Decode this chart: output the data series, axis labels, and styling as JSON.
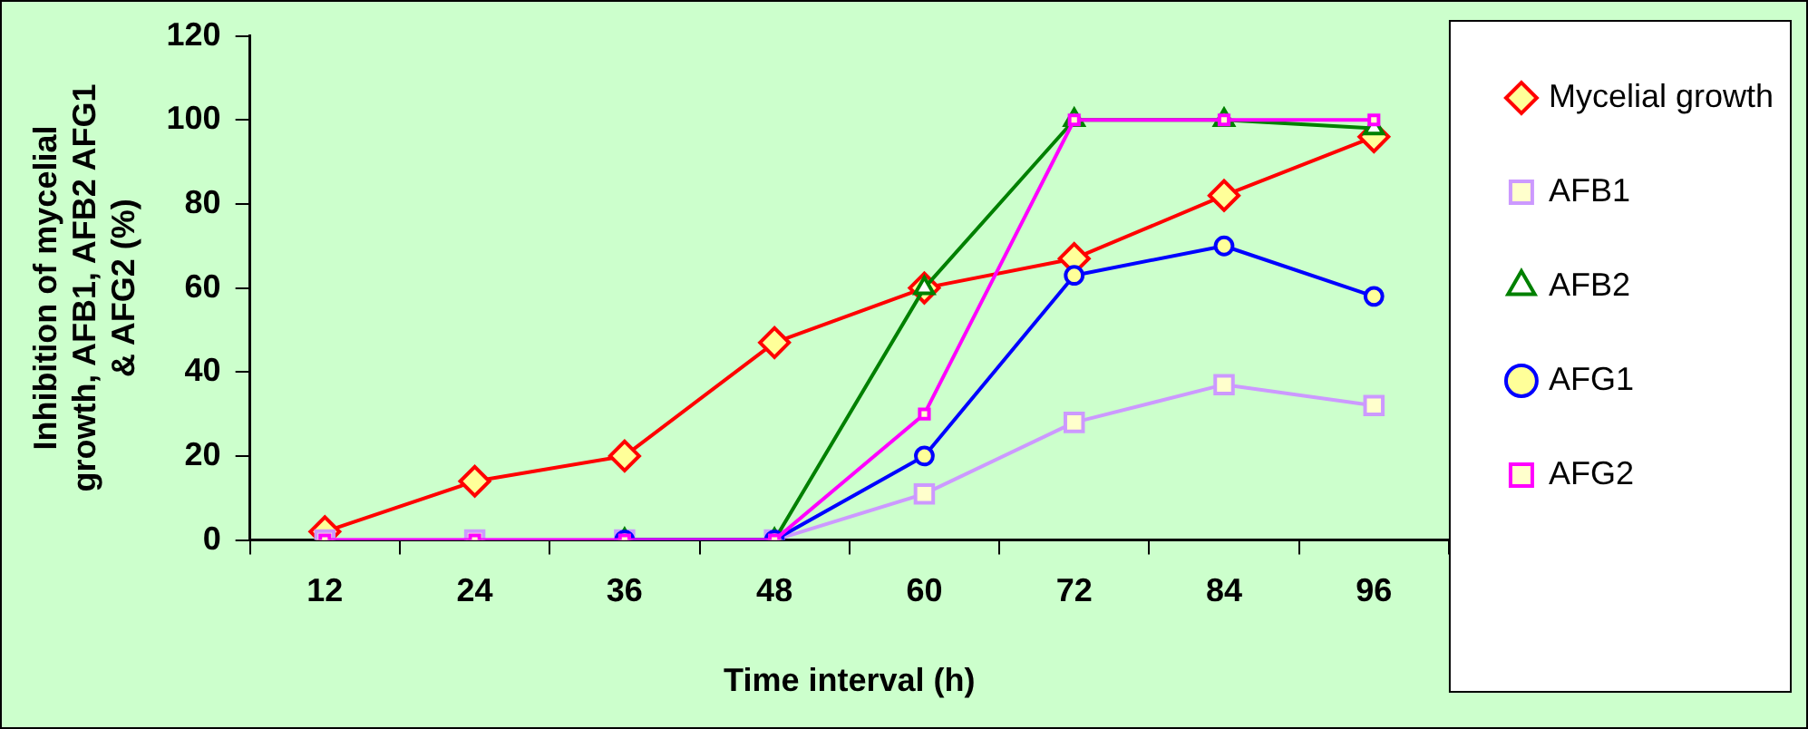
{
  "chart_data": {
    "type": "line",
    "xlabel": "Time interval (h)",
    "ylabel": "Inhibition of mycelial growth, AFB1, AFB2 AFG1 & AFG2 (%)",
    "categories": [
      "12",
      "24",
      "36",
      "48",
      "60",
      "72",
      "84",
      "96"
    ],
    "series": [
      {
        "name": "Mycelial growth",
        "color": "#ff0000",
        "marker": "diamond",
        "values": [
          2,
          14,
          20,
          47,
          60,
          67,
          82,
          96
        ]
      },
      {
        "name": "AFB1",
        "color": "#cc99ff",
        "marker": "square",
        "values": [
          0,
          0,
          0,
          0,
          11,
          28,
          37,
          32
        ]
      },
      {
        "name": "AFB2",
        "color": "#008000",
        "marker": "triangle",
        "values": [
          null,
          null,
          0,
          0,
          60,
          100,
          100,
          98
        ]
      },
      {
        "name": "AFG1",
        "color": "#0000ff",
        "marker": "circle",
        "values": [
          null,
          null,
          0,
          0,
          20,
          63,
          70,
          58
        ]
      },
      {
        "name": "AFG2",
        "color": "#ff00ff",
        "marker": "square",
        "values": [
          0,
          0,
          0,
          0,
          30,
          100,
          100,
          100
        ]
      }
    ],
    "ylim": [
      0,
      120
    ],
    "yticks": [
      0,
      20,
      40,
      60,
      80,
      100,
      120
    ],
    "grid": false,
    "legend": "right",
    "line_style": "solid"
  }
}
